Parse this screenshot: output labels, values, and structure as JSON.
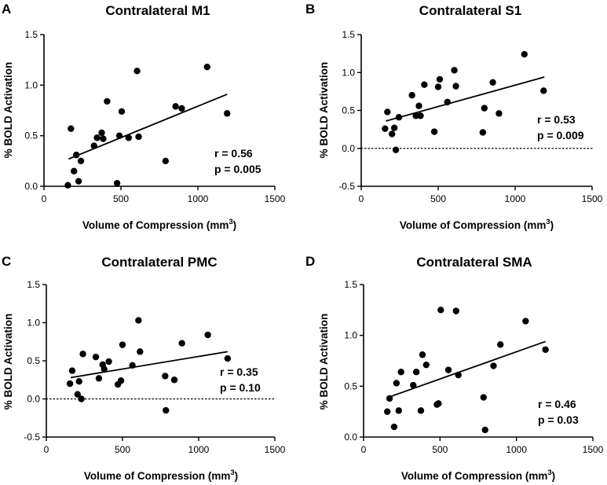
{
  "chart_data": [
    {
      "panel": "A",
      "type": "scatter",
      "title": "Contralateral M1",
      "xlabel": "Volume of Compression (mm³)",
      "ylabel": "% BOLD Activation",
      "xlim": [
        0,
        1500
      ],
      "xticks": [
        0,
        500,
        1000,
        1500
      ],
      "ylim": [
        0,
        1.5
      ],
      "yticks": [
        "0.0",
        "0.5",
        "1.0",
        "1.5"
      ],
      "points": [
        [
          155,
          0.01
        ],
        [
          175,
          0.57
        ],
        [
          195,
          0.15
        ],
        [
          210,
          0.31
        ],
        [
          225,
          0.05
        ],
        [
          240,
          0.25
        ],
        [
          325,
          0.4
        ],
        [
          345,
          0.48
        ],
        [
          375,
          0.53
        ],
        [
          385,
          0.47
        ],
        [
          410,
          0.84
        ],
        [
          475,
          0.03
        ],
        [
          490,
          0.5
        ],
        [
          505,
          0.74
        ],
        [
          550,
          0.48
        ],
        [
          605,
          1.14
        ],
        [
          615,
          0.49
        ],
        [
          790,
          0.25
        ],
        [
          855,
          0.79
        ],
        [
          895,
          0.77
        ],
        [
          1060,
          1.18
        ],
        [
          1190,
          0.72
        ]
      ],
      "fit": [
        [
          160,
          0.27
        ],
        [
          1190,
          0.91
        ]
      ],
      "zero_line": false,
      "r_text": "r = 0.56",
      "p_text": "p = 0.005"
    },
    {
      "panel": "B",
      "type": "scatter",
      "title": "Contralateral S1",
      "xlabel": "Volume of Compression (mm³)",
      "ylabel": "% BOLD Activation",
      "xlim": [
        0,
        1500
      ],
      "xticks": [
        0,
        500,
        1000,
        1500
      ],
      "ylim": [
        -0.5,
        1.5
      ],
      "yticks": [
        "-0.5",
        "0.0",
        "0.5",
        "1.0",
        "1.5"
      ],
      "points": [
        [
          155,
          0.26
        ],
        [
          170,
          0.48
        ],
        [
          200,
          0.19
        ],
        [
          215,
          0.27
        ],
        [
          225,
          -0.02
        ],
        [
          245,
          0.41
        ],
        [
          330,
          0.7
        ],
        [
          355,
          0.43
        ],
        [
          375,
          0.56
        ],
        [
          385,
          0.43
        ],
        [
          410,
          0.84
        ],
        [
          475,
          0.22
        ],
        [
          500,
          0.81
        ],
        [
          510,
          0.91
        ],
        [
          560,
          0.61
        ],
        [
          605,
          1.03
        ],
        [
          615,
          0.82
        ],
        [
          790,
          0.21
        ],
        [
          800,
          0.53
        ],
        [
          855,
          0.87
        ],
        [
          895,
          0.46
        ],
        [
          1060,
          1.24
        ],
        [
          1185,
          0.76
        ]
      ],
      "fit": [
        [
          160,
          0.36
        ],
        [
          1190,
          0.94
        ]
      ],
      "zero_line": true,
      "r_text": "r = 0.53",
      "p_text": "p = 0.009"
    },
    {
      "panel": "C",
      "type": "scatter",
      "title": "Contralateral PMC",
      "xlabel": "Volume of Compression (mm³)",
      "ylabel": "% BOLD Activation",
      "xlim": [
        0,
        1500
      ],
      "xticks": [
        0,
        500,
        1000,
        1500
      ],
      "ylim": [
        -0.5,
        1.5
      ],
      "yticks": [
        "-0.5",
        "0.0",
        "0.5",
        "1.0",
        "1.5"
      ],
      "points": [
        [
          155,
          0.2
        ],
        [
          170,
          0.37
        ],
        [
          205,
          0.06
        ],
        [
          215,
          0.23
        ],
        [
          230,
          0.0
        ],
        [
          240,
          0.59
        ],
        [
          325,
          0.55
        ],
        [
          345,
          0.27
        ],
        [
          370,
          0.45
        ],
        [
          380,
          0.39
        ],
        [
          410,
          0.49
        ],
        [
          470,
          0.19
        ],
        [
          490,
          0.24
        ],
        [
          500,
          0.71
        ],
        [
          565,
          0.44
        ],
        [
          605,
          1.03
        ],
        [
          615,
          0.62
        ],
        [
          780,
          0.3
        ],
        [
          785,
          -0.15
        ],
        [
          840,
          0.25
        ],
        [
          890,
          0.73
        ],
        [
          1060,
          0.84
        ],
        [
          1190,
          0.53
        ]
      ],
      "fit": [
        [
          160,
          0.28
        ],
        [
          1190,
          0.62
        ]
      ],
      "zero_line": true,
      "r_text": "r = 0.35",
      "p_text": "p = 0.10"
    },
    {
      "panel": "D",
      "type": "scatter",
      "title": "Contralateral SMA",
      "xlabel": "Volume of Compression (mm³)",
      "ylabel": "% BOLD Activation",
      "xlim": [
        0,
        1500
      ],
      "xticks": [
        0,
        500,
        1000,
        1500
      ],
      "ylim": [
        0,
        1.5
      ],
      "yticks": [
        "0.0",
        "0.5",
        "1.0",
        "1.5"
      ],
      "points": [
        [
          155,
          0.25
        ],
        [
          170,
          0.38
        ],
        [
          200,
          0.1
        ],
        [
          215,
          0.53
        ],
        [
          230,
          0.26
        ],
        [
          245,
          0.64
        ],
        [
          325,
          0.51
        ],
        [
          345,
          0.64
        ],
        [
          375,
          0.26
        ],
        [
          385,
          0.81
        ],
        [
          410,
          0.71
        ],
        [
          480,
          0.32
        ],
        [
          490,
          0.33
        ],
        [
          505,
          1.25
        ],
        [
          555,
          0.66
        ],
        [
          605,
          1.24
        ],
        [
          620,
          0.61
        ],
        [
          785,
          0.39
        ],
        [
          795,
          0.07
        ],
        [
          850,
          0.7
        ],
        [
          895,
          0.91
        ],
        [
          1060,
          1.14
        ],
        [
          1190,
          0.86
        ]
      ],
      "fit": [
        [
          160,
          0.39
        ],
        [
          1190,
          0.94
        ]
      ],
      "zero_line": false,
      "r_text": "r = 0.46",
      "p_text": "p = 0.03"
    }
  ]
}
